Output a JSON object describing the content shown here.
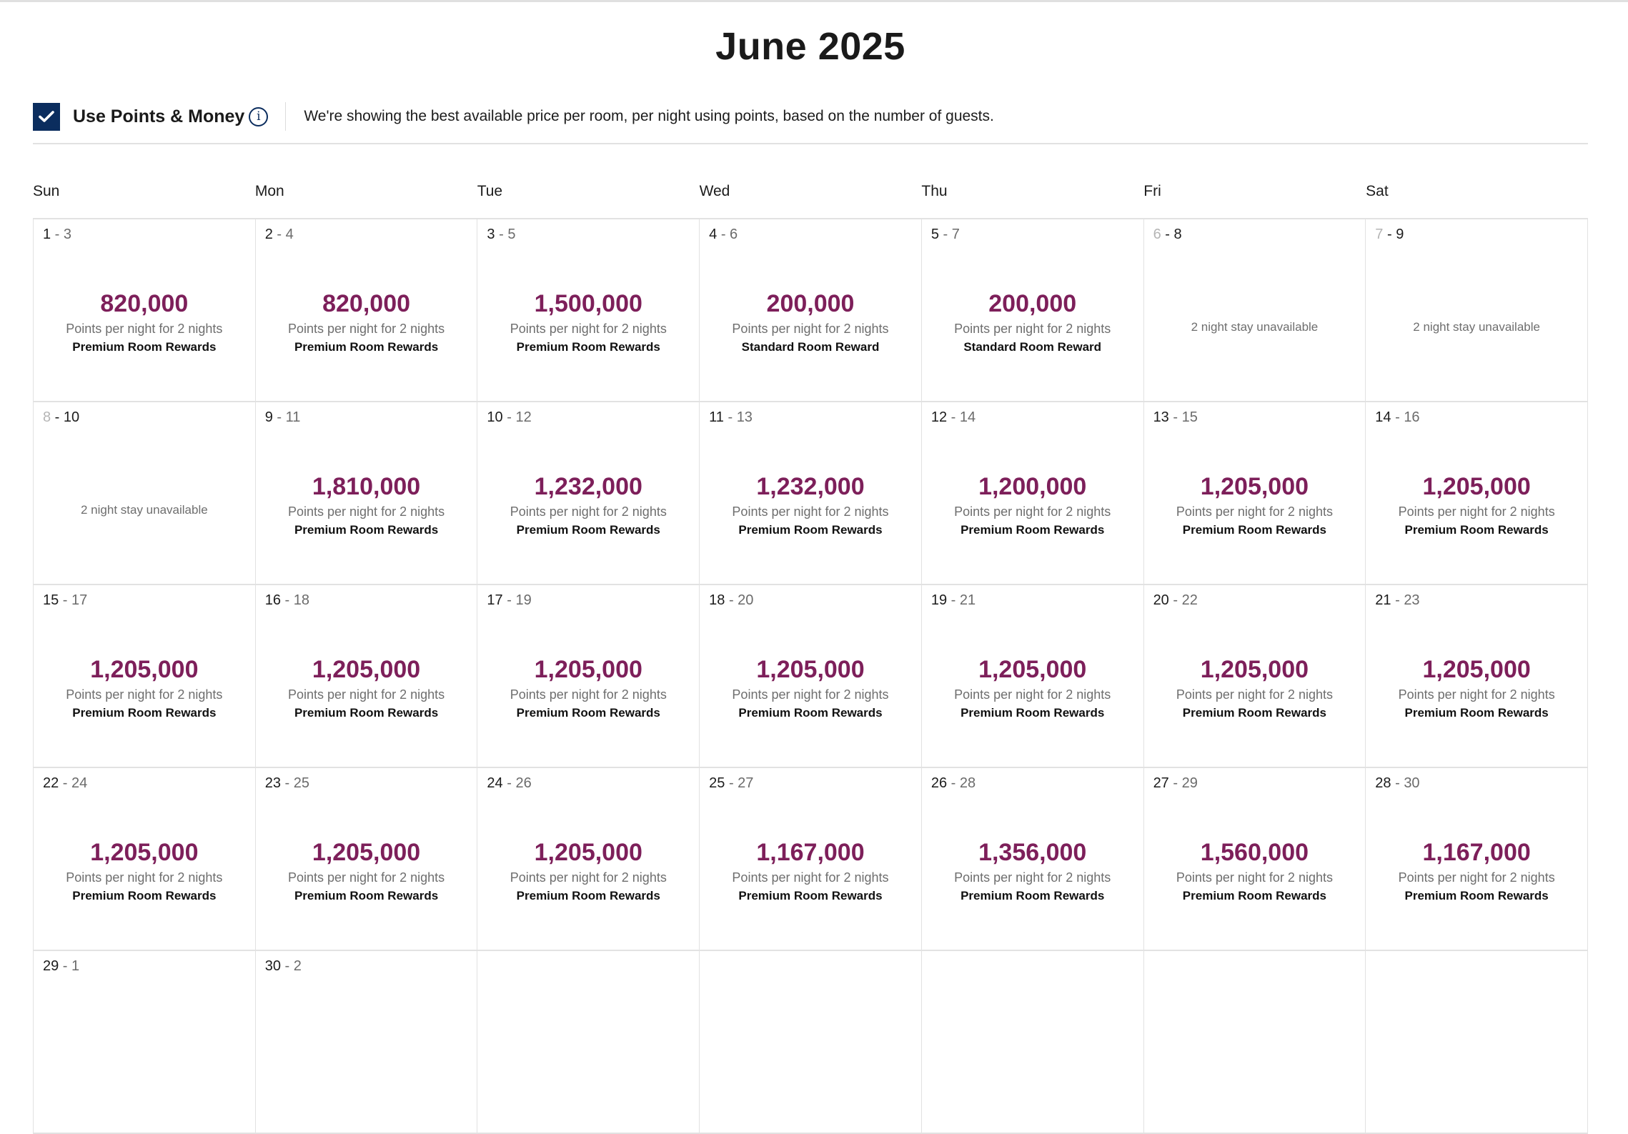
{
  "header": {
    "title": "June 2025"
  },
  "toolbar": {
    "checkbox_checked": true,
    "toggle_label": "Use Points & Money",
    "info_icon": "i",
    "description": "We're showing the best available price per room, per night using points, based on the number of guests."
  },
  "colors": {
    "price": "#7d1f5a",
    "checkbox": "#0b2d5e",
    "border": "#e2e2e2"
  },
  "weekdays": [
    "Sun",
    "Mon",
    "Tue",
    "Wed",
    "Thu",
    "Fri",
    "Sat"
  ],
  "calendar": {
    "rows": [
      [
        {
          "start": "1",
          "end": "3",
          "price": "820,000",
          "sub": "Points per night for 2 nights",
          "room": "Premium Room Rewards"
        },
        {
          "start": "2",
          "end": "4",
          "price": "820,000",
          "sub": "Points per night for 2 nights",
          "room": "Premium Room Rewards"
        },
        {
          "start": "3",
          "end": "5",
          "price": "1,500,000",
          "sub": "Points per night for 2 nights",
          "room": "Premium Room Rewards"
        },
        {
          "start": "4",
          "end": "6",
          "price": "200,000",
          "sub": "Points per night for 2 nights",
          "room": "Standard Room Reward"
        },
        {
          "start": "5",
          "end": "7",
          "price": "200,000",
          "sub": "Points per night for 2 nights",
          "room": "Standard Room Reward"
        },
        {
          "start": "6",
          "end": "8",
          "unavailable": "2 night stay unavailable"
        },
        {
          "start": "7",
          "end": "9",
          "unavailable": "2 night stay unavailable"
        }
      ],
      [
        {
          "start": "8",
          "end": "10",
          "unavailable": "2 night stay unavailable"
        },
        {
          "start": "9",
          "end": "11",
          "price": "1,810,000",
          "sub": "Points per night for 2 nights",
          "room": "Premium Room Rewards"
        },
        {
          "start": "10",
          "end": "12",
          "price": "1,232,000",
          "sub": "Points per night for 2 nights",
          "room": "Premium Room Rewards"
        },
        {
          "start": "11",
          "end": "13",
          "price": "1,232,000",
          "sub": "Points per night for 2 nights",
          "room": "Premium Room Rewards"
        },
        {
          "start": "12",
          "end": "14",
          "price": "1,200,000",
          "sub": "Points per night for 2 nights",
          "room": "Premium Room Rewards"
        },
        {
          "start": "13",
          "end": "15",
          "price": "1,205,000",
          "sub": "Points per night for 2 nights",
          "room": "Premium Room Rewards"
        },
        {
          "start": "14",
          "end": "16",
          "price": "1,205,000",
          "sub": "Points per night for 2 nights",
          "room": "Premium Room Rewards"
        }
      ],
      [
        {
          "start": "15",
          "end": "17",
          "price": "1,205,000",
          "sub": "Points per night for 2 nights",
          "room": "Premium Room Rewards"
        },
        {
          "start": "16",
          "end": "18",
          "price": "1,205,000",
          "sub": "Points per night for 2 nights",
          "room": "Premium Room Rewards"
        },
        {
          "start": "17",
          "end": "19",
          "price": "1,205,000",
          "sub": "Points per night for 2 nights",
          "room": "Premium Room Rewards"
        },
        {
          "start": "18",
          "end": "20",
          "price": "1,205,000",
          "sub": "Points per night for 2 nights",
          "room": "Premium Room Rewards"
        },
        {
          "start": "19",
          "end": "21",
          "price": "1,205,000",
          "sub": "Points per night for 2 nights",
          "room": "Premium Room Rewards"
        },
        {
          "start": "20",
          "end": "22",
          "price": "1,205,000",
          "sub": "Points per night for 2 nights",
          "room": "Premium Room Rewards"
        },
        {
          "start": "21",
          "end": "23",
          "price": "1,205,000",
          "sub": "Points per night for 2 nights",
          "room": "Premium Room Rewards"
        }
      ],
      [
        {
          "start": "22",
          "end": "24",
          "price": "1,205,000",
          "sub": "Points per night for 2 nights",
          "room": "Premium Room Rewards"
        },
        {
          "start": "23",
          "end": "25",
          "price": "1,205,000",
          "sub": "Points per night for 2 nights",
          "room": "Premium Room Rewards"
        },
        {
          "start": "24",
          "end": "26",
          "price": "1,205,000",
          "sub": "Points per night for 2 nights",
          "room": "Premium Room Rewards"
        },
        {
          "start": "25",
          "end": "27",
          "price": "1,167,000",
          "sub": "Points per night for 2 nights",
          "room": "Premium Room Rewards"
        },
        {
          "start": "26",
          "end": "28",
          "price": "1,356,000",
          "sub": "Points per night for 2 nights",
          "room": "Premium Room Rewards"
        },
        {
          "start": "27",
          "end": "29",
          "price": "1,560,000",
          "sub": "Points per night for 2 nights",
          "room": "Premium Room Rewards"
        },
        {
          "start": "28",
          "end": "30",
          "price": "1,167,000",
          "sub": "Points per night for 2 nights",
          "room": "Premium Room Rewards"
        }
      ],
      [
        {
          "start": "29",
          "end": "1"
        },
        {
          "start": "30",
          "end": "2"
        },
        {},
        {},
        {},
        {},
        {}
      ]
    ]
  }
}
